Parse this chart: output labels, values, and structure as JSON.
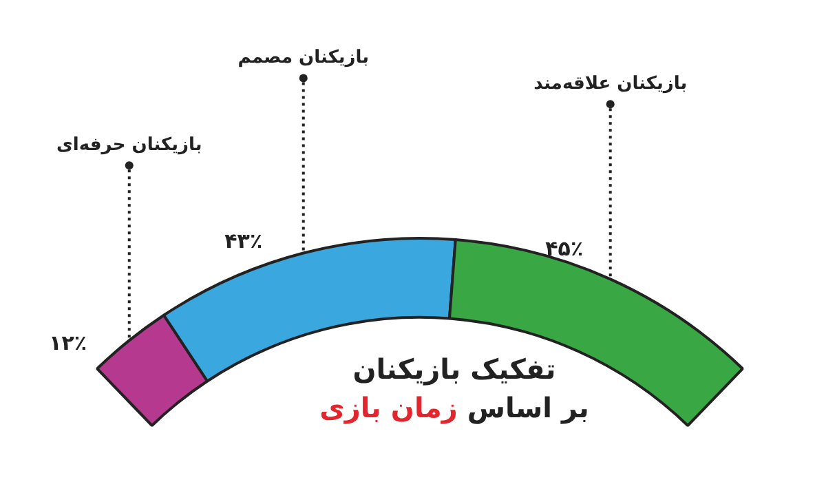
{
  "chart_data": {
    "type": "donut",
    "title": "تفکیک بازیکنان",
    "subtitle": "بر اساس زمان بازی",
    "categories": [
      "بازیکنان حرفه‌ای",
      "بازیکنان مصمم",
      "بازیکنان علاقه‌مند"
    ],
    "values": [
      12,
      43,
      45
    ],
    "colors": [
      "#b5398f",
      "#3aa7df",
      "#3aa745"
    ],
    "value_labels": [
      "۱۲٪",
      "۴۳٪",
      "۴۵٪"
    ],
    "legend": false
  }
}
